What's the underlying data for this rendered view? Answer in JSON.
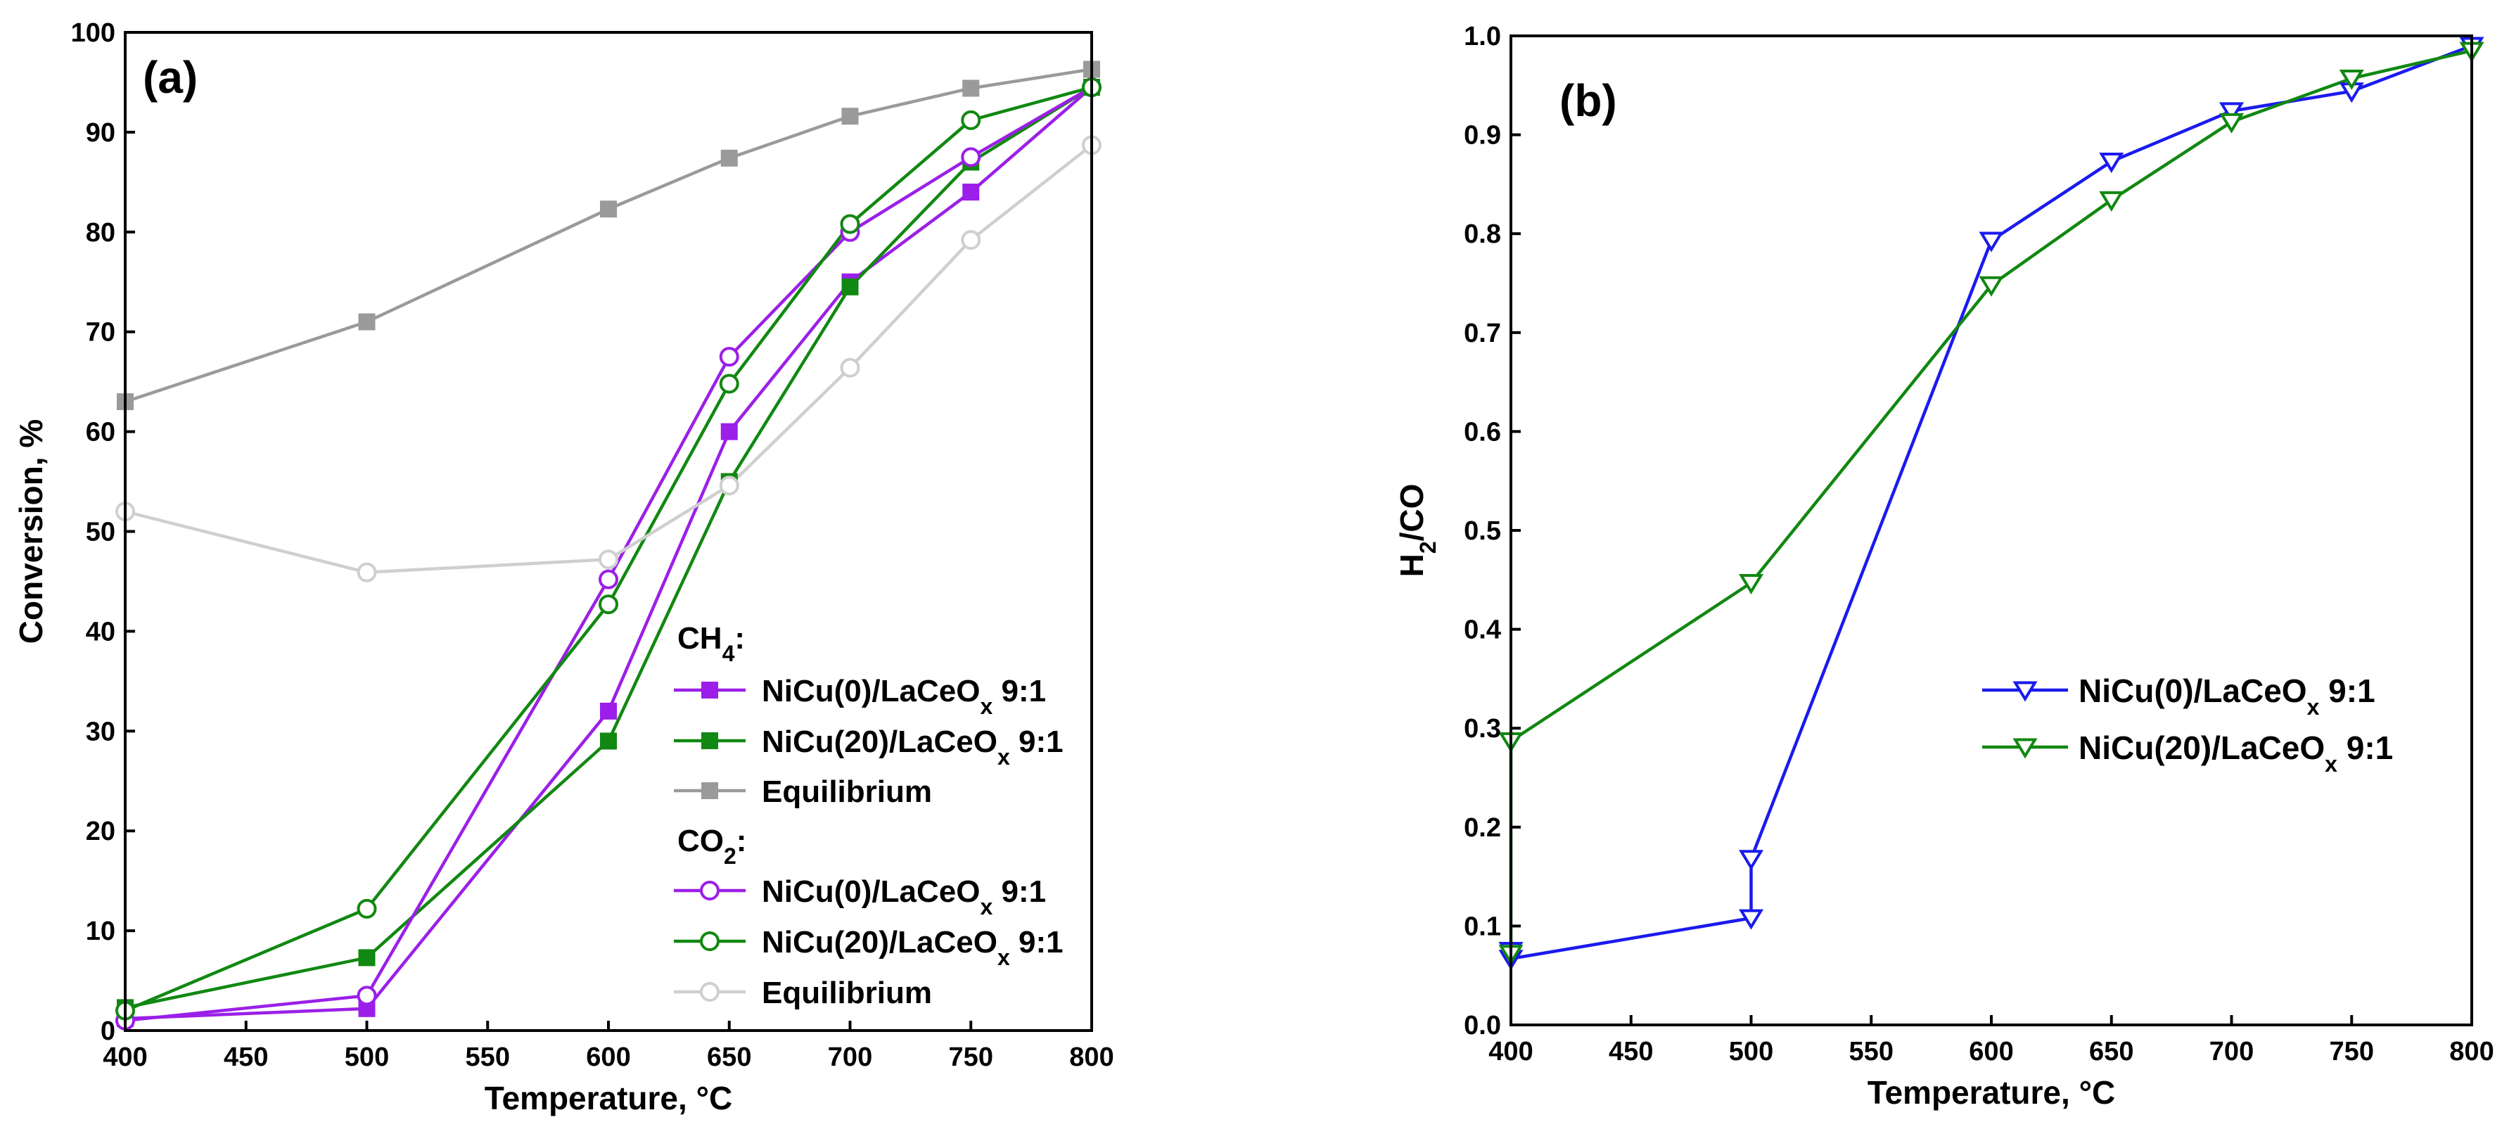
{
  "chart_data": [
    {
      "panel": "(a)",
      "type": "line",
      "xlabel": "Temperature, °C",
      "ylabel": "Conversion, %",
      "xlim": [
        400,
        800
      ],
      "ylim": [
        0,
        100
      ],
      "xticks": [
        400,
        450,
        500,
        550,
        600,
        650,
        700,
        750,
        800
      ],
      "yticks": [
        0,
        10,
        20,
        30,
        40,
        50,
        60,
        70,
        80,
        90,
        100
      ],
      "legend_groups": [
        {
          "heading_main": "CH",
          "heading_sub": "4",
          "heading_tail": ":"
        },
        {
          "heading_main": "CO",
          "heading_sub": "2",
          "heading_tail": ":"
        }
      ],
      "series": [
        {
          "name_main": "NiCu(0)/LaCeO",
          "name_sub": "x",
          "name_tail": " 9:1",
          "group": "CH4",
          "color": "#9b1fe8",
          "marker": "square-filled",
          "x": [
            400,
            500,
            600,
            650,
            700,
            750,
            800
          ],
          "y": [
            1.2,
            2.2,
            32.0,
            60.0,
            75.0,
            84.0,
            94.5
          ]
        },
        {
          "name_main": "NiCu(20)/LaCeO",
          "name_sub": "x",
          "name_tail": " 9:1",
          "group": "CH4",
          "color": "#118811",
          "marker": "square-filled",
          "x": [
            400,
            500,
            600,
            650,
            700,
            750,
            800
          ],
          "y": [
            2.3,
            7.3,
            29.0,
            55.0,
            74.5,
            87.0,
            94.5
          ]
        },
        {
          "name_main": "Equilibrium",
          "name_sub": "",
          "name_tail": "",
          "group": "CH4",
          "color": "#9a9a9a",
          "marker": "square-filled",
          "x": [
            400,
            500,
            600,
            650,
            700,
            750,
            800
          ],
          "y": [
            63.0,
            71.0,
            82.3,
            87.4,
            91.6,
            94.4,
            96.3
          ]
        },
        {
          "name_main": "NiCu(0)/LaCeO",
          "name_sub": "x",
          "name_tail": " 9:1",
          "group": "CO2",
          "color": "#9b1fe8",
          "marker": "circle-open",
          "x": [
            400,
            500,
            600,
            650,
            700,
            750,
            800
          ],
          "y": [
            1.0,
            3.5,
            45.2,
            67.5,
            80.0,
            87.5,
            94.5
          ]
        },
        {
          "name_main": "NiCu(20)/LaCeO",
          "name_sub": "x",
          "name_tail": " 9:1",
          "group": "CO2",
          "color": "#118811",
          "marker": "circle-open",
          "x": [
            400,
            500,
            600,
            650,
            700,
            750,
            800
          ],
          "y": [
            2.0,
            12.2,
            42.7,
            64.8,
            80.8,
            91.2,
            94.5
          ]
        },
        {
          "name_main": "Equilibrium",
          "name_sub": "",
          "name_tail": "",
          "group": "CO2",
          "color": "#cfcfcf",
          "marker": "circle-open",
          "x": [
            400,
            500,
            600,
            650,
            700,
            750,
            800
          ],
          "y": [
            52.0,
            45.9,
            47.2,
            54.6,
            66.4,
            79.2,
            88.7
          ]
        }
      ]
    },
    {
      "panel": "(b)",
      "type": "line",
      "xlabel": "Temperature, °C",
      "ylabel_main": "H",
      "ylabel_sub": "2",
      "ylabel_tail": "/CO",
      "xlim": [
        400,
        800
      ],
      "ylim": [
        0.0,
        1.0
      ],
      "xticks": [
        400,
        450,
        500,
        550,
        600,
        650,
        700,
        750,
        800
      ],
      "yticks": [
        "0.0",
        "0.1",
        "0.2",
        "0.3",
        "0.4",
        "0.5",
        "0.6",
        "0.7",
        "0.8",
        "0.9",
        "1.0"
      ],
      "series": [
        {
          "name_main": "NiCu(0)/LaCeO",
          "name_sub": "x",
          "name_tail": " 9:1",
          "color": "#1a1aee",
          "marker": "triangle-down-open",
          "x": [
            400,
            400,
            500,
            500,
            600,
            650,
            700,
            750,
            800
          ],
          "y": [
            0.075,
            0.067,
            0.108,
            0.168,
            0.793,
            0.873,
            0.924,
            0.944,
            0.99
          ]
        },
        {
          "name_main": "NiCu(20)/LaCeO",
          "name_sub": "x",
          "name_tail": " 9:1",
          "color": "#118811",
          "marker": "triangle-down-open",
          "x": [
            400,
            400,
            500,
            600,
            650,
            700,
            750,
            800
          ],
          "y": [
            0.072,
            0.287,
            0.447,
            0.748,
            0.834,
            0.913,
            0.957,
            0.985
          ]
        }
      ]
    }
  ]
}
